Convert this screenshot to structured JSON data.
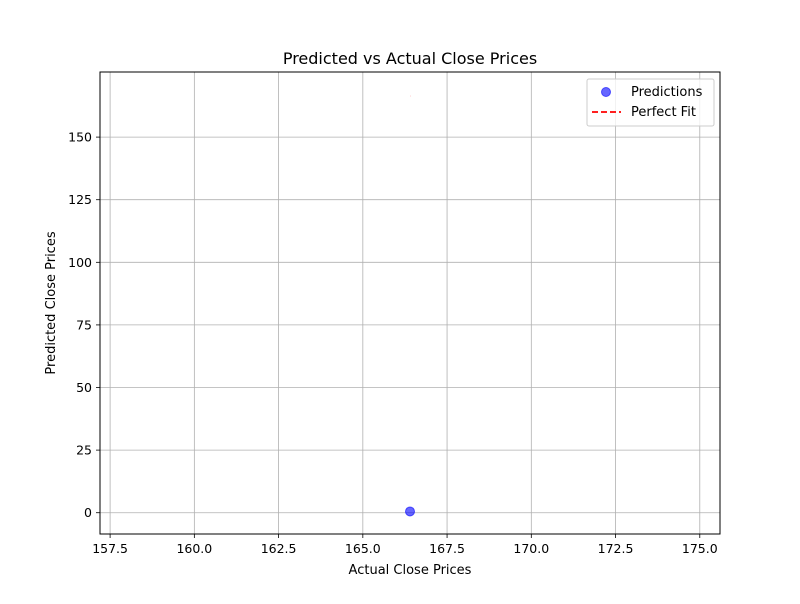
{
  "chart_data": {
    "type": "scatter",
    "title": "Predicted vs Actual Close Prices",
    "xlabel": "Actual Close Prices",
    "ylabel": "Predicted Close Prices",
    "xlim": [
      157.2,
      175.6
    ],
    "ylim": [
      -8.5,
      176
    ],
    "xticks": [
      157.5,
      160.0,
      162.5,
      165.0,
      167.5,
      170.0,
      172.5,
      175.0
    ],
    "xtick_labels": [
      "157.5",
      "160.0",
      "162.5",
      "165.0",
      "167.5",
      "170.0",
      "172.5",
      "175.0"
    ],
    "yticks": [
      0,
      25,
      50,
      75,
      100,
      125,
      150
    ],
    "ytick_labels": [
      "0",
      "25",
      "50",
      "75",
      "100",
      "125",
      "150"
    ],
    "grid": true,
    "legend_position": "top-right",
    "series": [
      {
        "name": "Predictions",
        "kind": "scatter",
        "color": "#0000ff",
        "x": [
          166.4
        ],
        "y": [
          0.5
        ]
      },
      {
        "name": "Perfect Fit",
        "kind": "line",
        "style": "dashed",
        "color": "#ff0000",
        "x": [
          166.4,
          166.4
        ],
        "y": [
          166.4,
          166.4
        ]
      }
    ]
  }
}
